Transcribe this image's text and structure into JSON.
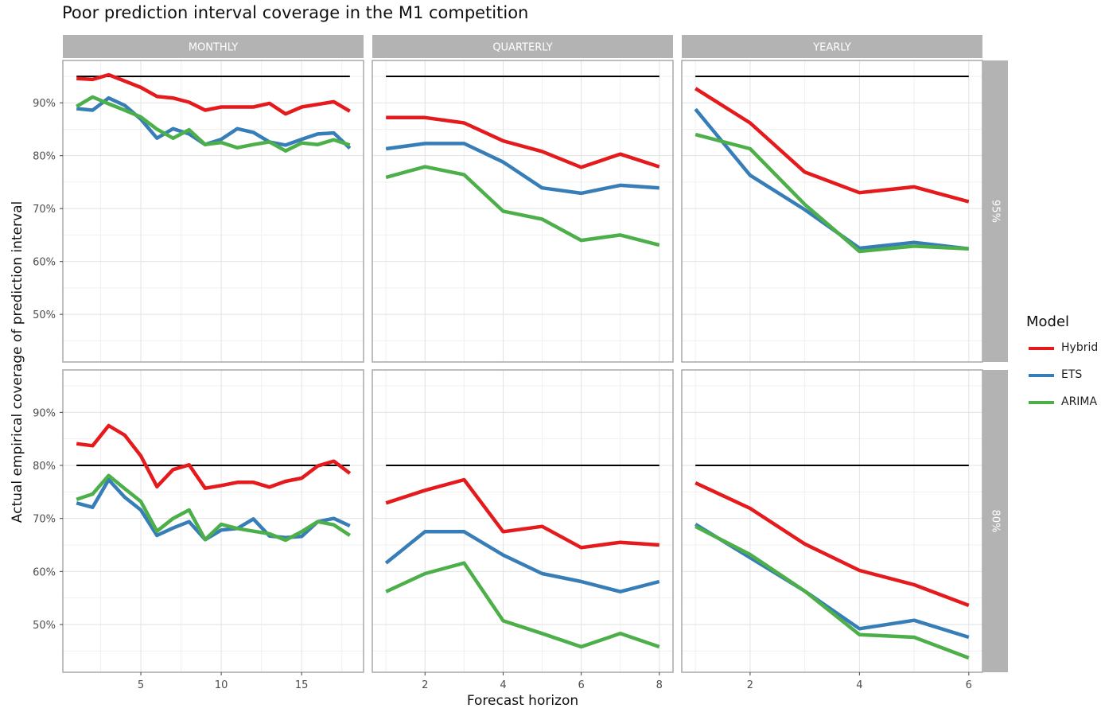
{
  "title": "Poor prediction interval coverage in the M1 competition",
  "legend": {
    "title": "Model",
    "items": [
      {
        "label": "Hybrid",
        "color": "#e41a1c"
      },
      {
        "label": "ETS",
        "color": "#377eb8"
      },
      {
        "label": "ARIMA",
        "color": "#4daf4a"
      }
    ]
  },
  "chart_data": {
    "type": "line",
    "title": "Poor prediction interval coverage in the M1 competition",
    "xlabel": "Forecast horizon",
    "ylabel": "Actual empirical coverage of prediction interval",
    "ylim": [
      41,
      98
    ],
    "y_ticks": [
      50,
      60,
      70,
      80,
      90
    ],
    "y_tick_format": "percent",
    "grid": true,
    "legend_position": "right",
    "columns": [
      {
        "label": "MONTHLY",
        "xlim": [
          0.15,
          18.85
        ],
        "x_ticks": [
          5,
          10,
          15
        ],
        "x": [
          1,
          2,
          3,
          4,
          5,
          6,
          7,
          8,
          9,
          10,
          11,
          12,
          13,
          14,
          15,
          16,
          17,
          18
        ]
      },
      {
        "label": "QUARTERLY",
        "xlim": [
          0.65,
          8.35
        ],
        "x_ticks": [
          2,
          4,
          6,
          8
        ],
        "x": [
          1,
          2,
          3,
          4,
          5,
          6,
          7,
          8
        ]
      },
      {
        "label": "YEARLY",
        "xlim": [
          0.75,
          6.25
        ],
        "x_ticks": [
          2,
          4,
          6
        ],
        "x": [
          1,
          2,
          3,
          4,
          5,
          6
        ]
      }
    ],
    "rows": [
      {
        "label": "95%",
        "nominal": 95
      },
      {
        "label": "80%",
        "nominal": 80
      }
    ],
    "panels": [
      {
        "row": 0,
        "col": 0,
        "series": [
          {
            "name": "Hybrid",
            "values": [
              94.6,
              94.4,
              95.3,
              94.1,
              92.9,
              91.2,
              90.9,
              90.1,
              88.6,
              89.2,
              89.2,
              89.2,
              89.9,
              87.9,
              89.2,
              89.7,
              90.2,
              88.4
            ]
          },
          {
            "name": "ETS",
            "values": [
              88.9,
              88.6,
              90.9,
              89.5,
              86.9,
              83.3,
              85.1,
              84.1,
              82.1,
              83.1,
              85.1,
              84.4,
              82.6,
              82.0,
              83.1,
              84.1,
              84.3,
              81.4
            ]
          },
          {
            "name": "ARIMA",
            "values": [
              89.3,
              91.1,
              89.8,
              88.6,
              87.3,
              85.0,
              83.3,
              84.9,
              82.1,
              82.5,
              81.5,
              82.1,
              82.6,
              80.9,
              82.4,
              82.1,
              83.0,
              82.0
            ]
          }
        ]
      },
      {
        "row": 0,
        "col": 1,
        "series": [
          {
            "name": "Hybrid",
            "values": [
              87.2,
              87.2,
              86.2,
              82.8,
              80.8,
              77.8,
              80.3,
              77.9
            ]
          },
          {
            "name": "ETS",
            "values": [
              81.3,
              82.3,
              82.3,
              78.8,
              73.9,
              72.9,
              74.4,
              73.9
            ]
          },
          {
            "name": "ARIMA",
            "values": [
              75.9,
              77.9,
              76.4,
              69.5,
              68.0,
              64.0,
              65.0,
              63.1
            ]
          }
        ]
      },
      {
        "row": 0,
        "col": 2,
        "series": [
          {
            "name": "Hybrid",
            "values": [
              92.7,
              86.2,
              76.9,
              73.0,
              74.1,
              71.3
            ]
          },
          {
            "name": "ETS",
            "values": [
              88.8,
              76.3,
              69.8,
              62.5,
              63.6,
              62.4
            ]
          },
          {
            "name": "ARIMA",
            "values": [
              84.0,
              81.3,
              70.8,
              61.9,
              62.9,
              62.4
            ]
          }
        ]
      },
      {
        "row": 1,
        "col": 0,
        "series": [
          {
            "name": "Hybrid",
            "values": [
              84.1,
              83.7,
              87.5,
              85.7,
              81.8,
              76.0,
              79.2,
              80.1,
              75.7,
              76.2,
              76.8,
              76.8,
              75.9,
              77.0,
              77.6,
              79.9,
              80.8,
              78.5
            ]
          },
          {
            "name": "ETS",
            "values": [
              72.9,
              72.1,
              77.3,
              74.0,
              71.6,
              66.8,
              68.2,
              69.4,
              66.0,
              67.8,
              68.1,
              69.9,
              66.7,
              66.4,
              66.6,
              69.4,
              70.0,
              68.6
            ]
          },
          {
            "name": "ARIMA",
            "values": [
              73.6,
              74.6,
              78.1,
              75.6,
              73.2,
              67.6,
              70.0,
              71.6,
              66.0,
              68.9,
              68.1,
              67.6,
              67.1,
              65.9,
              67.5,
              69.4,
              68.8,
              66.8
            ]
          }
        ]
      },
      {
        "row": 1,
        "col": 1,
        "series": [
          {
            "name": "Hybrid",
            "values": [
              72.9,
              75.3,
              77.3,
              67.5,
              68.5,
              64.5,
              65.5,
              65.0
            ]
          },
          {
            "name": "ETS",
            "values": [
              61.6,
              67.5,
              67.5,
              63.1,
              59.6,
              58.1,
              56.2,
              58.1
            ]
          },
          {
            "name": "ARIMA",
            "values": [
              56.2,
              59.6,
              61.6,
              50.7,
              48.3,
              45.8,
              48.3,
              45.8
            ]
          }
        ]
      },
      {
        "row": 1,
        "col": 2,
        "series": [
          {
            "name": "Hybrid",
            "values": [
              76.7,
              71.9,
              65.2,
              60.2,
              57.5,
              53.6
            ]
          },
          {
            "name": "ETS",
            "values": [
              68.9,
              62.6,
              56.3,
              49.2,
              50.8,
              47.6
            ]
          },
          {
            "name": "ARIMA",
            "values": [
              68.5,
              63.2,
              56.3,
              48.1,
              47.6,
              43.7
            ]
          }
        ]
      }
    ]
  }
}
